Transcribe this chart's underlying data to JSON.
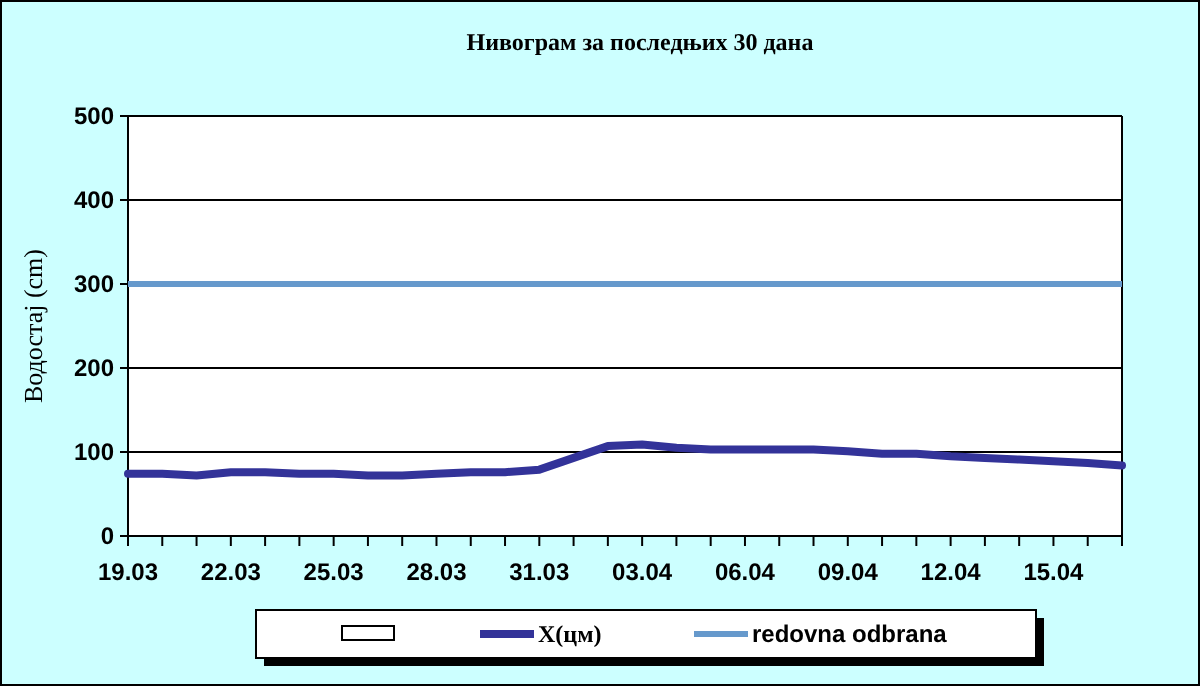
{
  "chart_data": {
    "type": "line",
    "title": "Нивограм за последњих 30 дана",
    "ylabel": "Водостај (cm)",
    "categories": [
      "19.03",
      null,
      null,
      "22.03",
      null,
      null,
      "25.03",
      null,
      null,
      "28.03",
      null,
      null,
      "31.03",
      null,
      null,
      "03.04",
      null,
      null,
      "06.04",
      null,
      null,
      "09.04",
      null,
      null,
      "12.04",
      null,
      null,
      "15.04",
      null,
      null
    ],
    "series": [
      {
        "name": "X(цм)",
        "color": "#333399",
        "values": [
          74,
          74,
          72,
          76,
          76,
          74,
          74,
          72,
          72,
          74,
          76,
          76,
          79,
          93,
          107,
          109,
          105,
          103,
          103,
          103,
          103,
          101,
          98,
          98,
          95,
          93,
          91,
          89,
          87,
          84
        ]
      }
    ],
    "ref_lines": [
      {
        "axis": "y",
        "value": 300,
        "label": "redovna odbrana",
        "color": "#6699cc"
      }
    ],
    "ylim": [
      0,
      500
    ],
    "yticks": [
      0,
      100,
      200,
      300,
      400,
      500
    ],
    "grid": "y",
    "legend": "bottom"
  }
}
